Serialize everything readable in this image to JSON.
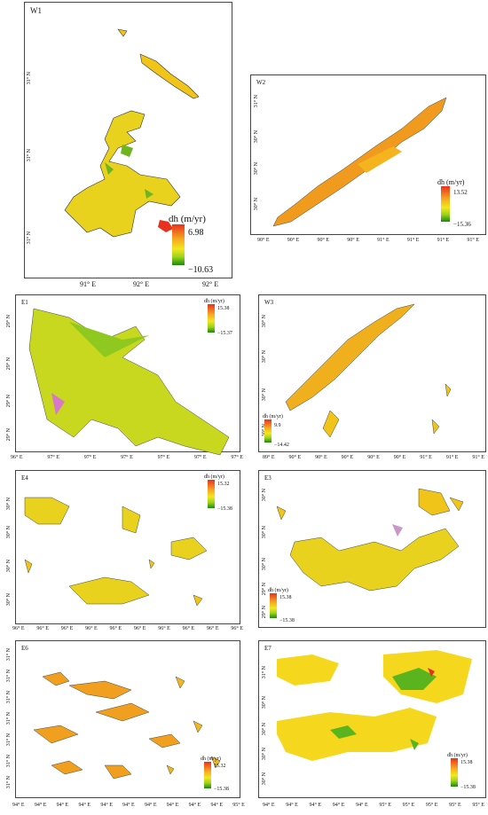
{
  "panels": {
    "w1": {
      "title": "W1",
      "lat_labels": [
        "31° N",
        "31° N",
        "31° N"
      ],
      "lon_labels": [
        "91° E",
        "92° E",
        "92° E"
      ],
      "legend": {
        "title": "dh (m/yr)",
        "max": "6.98",
        "min": "−10.63"
      }
    },
    "w2": {
      "title": "W2",
      "lat_labels": [
        "31° N",
        "30° N",
        "30° N",
        "30° N"
      ],
      "lon_labels": [
        "90° E",
        "90° E",
        "90° E",
        "90° E",
        "91° E",
        "91° E",
        "91° E",
        "91° E"
      ],
      "legend": {
        "title": "dh (m/yr)",
        "max": "13.52",
        "min": "−15.36"
      }
    },
    "e1": {
      "title": "E1",
      "lat_labels": [
        "29° N",
        "29° N",
        "29° N",
        "29° N"
      ],
      "lon_labels": [
        "96° E",
        "97° E",
        "97° E",
        "97° E",
        "97° E",
        "97° E",
        "97° E"
      ],
      "legend": {
        "title": "dh (m/yr)",
        "max": "15.38",
        "min": "−15.37"
      }
    },
    "w3": {
      "title": "W3",
      "lat_labels": [
        "30° N",
        "30° N",
        "30° N",
        "30° N"
      ],
      "lon_labels": [
        "89° E",
        "90° E",
        "90° E",
        "90° E",
        "90° E",
        "90° E",
        "91° E",
        "91° E",
        "91° E"
      ],
      "legend": {
        "title": "dh (m/yr)",
        "max": "9.9",
        "min": "−14.42"
      }
    },
    "e4": {
      "title": "E4",
      "lat_labels": [
        "30° N",
        "30° N",
        "30° N",
        "30° N"
      ],
      "lon_labels": [
        "96° E",
        "96° E",
        "96° E",
        "96° E",
        "96° E",
        "96° E",
        "96° E",
        "96° E",
        "96° E",
        "96° E"
      ],
      "legend": {
        "title": "dh (m/yr)",
        "max": "15.32",
        "min": "−15.38"
      }
    },
    "e3": {
      "title": "E3",
      "lat_labels": [
        "30° N",
        "30° N",
        "30° N",
        "29° N",
        "29° N"
      ],
      "lon_labels": [],
      "legend": {
        "title": "dh (m/yr)",
        "max": "15.38",
        "min": "−15.38"
      }
    },
    "e6": {
      "title": "E6",
      "lat_labels": [
        "31° N",
        "31° N",
        "31° N",
        "31° N",
        "31° N",
        "31° N",
        "31° N"
      ],
      "lon_labels": [
        "94° E",
        "94° E",
        "94° E",
        "94° E",
        "94° E",
        "94° E",
        "94° E",
        "94° E",
        "94° E",
        "94° E",
        "95° E"
      ],
      "legend": {
        "title": "dh (m/yr)",
        "max": "15.32",
        "min": "−15.38"
      }
    },
    "e7": {
      "title": "E7",
      "lat_labels": [
        "31° N",
        "30° N",
        "30° N",
        "30° N",
        "30° N"
      ],
      "lon_labels": [
        "94° E",
        "94° E",
        "94° E",
        "94° E",
        "94° E",
        "95° E",
        "95° E",
        "95° E",
        "95° E",
        "95° E"
      ],
      "legend": {
        "title": "dh (m/yr)",
        "max": "15.38",
        "min": "−15.38"
      }
    }
  },
  "colors": {
    "high": "#e8321e",
    "mid": "#f2e81e",
    "low": "#1a8a0e",
    "fill": "#f0c419",
    "outline": "#3a3a1a"
  }
}
